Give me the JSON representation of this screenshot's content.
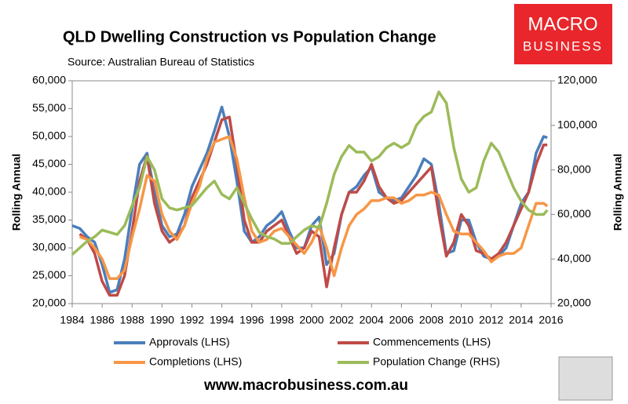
{
  "chart_data": {
    "type": "line",
    "title": "QLD Dwelling Construction vs Population Change",
    "subtitle": "Source: Australian Bureau of Statistics",
    "logo": [
      "MACRO",
      "BUSINESS"
    ],
    "footer": "www.macrobusiness.com.au",
    "ylabel": "Rolling Annual",
    "y2label": "Rolling Annual",
    "x": [
      1984,
      1984.5,
      1985,
      1985.5,
      1986,
      1986.5,
      1987,
      1987.5,
      1988,
      1988.5,
      1989,
      1989.5,
      1990,
      1990.5,
      1991,
      1991.5,
      1992,
      1992.5,
      1993,
      1993.5,
      1994,
      1994.5,
      1995,
      1995.5,
      1996,
      1996.5,
      1997,
      1997.5,
      1998,
      1998.5,
      1999,
      1999.5,
      2000,
      2000.5,
      2001,
      2001.5,
      2002,
      2002.5,
      2003,
      2003.5,
      2004,
      2004.5,
      2005,
      2005.5,
      2006,
      2006.5,
      2007,
      2007.5,
      2008,
      2008.5,
      2009,
      2009.5,
      2010,
      2010.5,
      2011,
      2011.5,
      2012,
      2012.5,
      2013,
      2013.5,
      2014,
      2014.5,
      2015,
      2015.5,
      2015.75
    ],
    "series": [
      {
        "name": "Approvals (LHS)",
        "color": "#4a7ebb",
        "values": [
          34000,
          33500,
          32000,
          31000,
          27000,
          22000,
          22500,
          28000,
          37000,
          45000,
          47000,
          40000,
          34000,
          32000,
          32500,
          36000,
          41000,
          44000,
          47000,
          51000,
          55300,
          50000,
          42000,
          33000,
          31000,
          32000,
          34000,
          35000,
          36500,
          33000,
          30000,
          30000,
          34000,
          35500,
          27000,
          29000,
          36000,
          40000,
          41000,
          43000,
          44500,
          40000,
          39000,
          38500,
          39000,
          41000,
          43000,
          46000,
          45000,
          38000,
          29000,
          29500,
          35000,
          35000,
          31000,
          28500,
          28000,
          28500,
          30000,
          34000,
          38000,
          40000,
          47000,
          50000,
          49800
        ]
      },
      {
        "name": "Commencements (LHS)",
        "color": "#be4b48",
        "values": [
          null,
          32500,
          31500,
          29000,
          24000,
          21500,
          21500,
          25000,
          33000,
          42000,
          46500,
          38000,
          33000,
          31000,
          32000,
          34000,
          39000,
          42000,
          45000,
          49000,
          53000,
          53500,
          45000,
          35000,
          31000,
          31000,
          33000,
          34000,
          35000,
          32000,
          29000,
          30000,
          33000,
          32000,
          23000,
          30000,
          36000,
          40000,
          40000,
          42000,
          45000,
          41000,
          39000,
          38000,
          38500,
          40000,
          41500,
          43000,
          44500,
          36000,
          28500,
          31000,
          36000,
          34000,
          29500,
          29000,
          28000,
          29000,
          31000,
          34000,
          37000,
          40000,
          45000,
          48500,
          48500
        ]
      },
      {
        "name": "Completions (LHS)",
        "color": "#f79646",
        "values": [
          null,
          32000,
          31500,
          30000,
          28000,
          24500,
          24500,
          26000,
          32000,
          37000,
          43000,
          42000,
          36000,
          33000,
          31500,
          34000,
          38000,
          41000,
          46000,
          49000,
          49500,
          50000,
          46000,
          39000,
          33000,
          31000,
          31500,
          33000,
          33500,
          32000,
          30500,
          29000,
          31000,
          34000,
          30000,
          25000,
          30000,
          34000,
          36000,
          37000,
          38500,
          38500,
          39000,
          39000,
          38000,
          38500,
          39500,
          39500,
          40000,
          39500,
          36000,
          33000,
          32500,
          32500,
          31000,
          29500,
          27500,
          28500,
          29000,
          29000,
          30000,
          34000,
          38000,
          38000,
          37500
        ]
      },
      {
        "name": "Population Change (RHS)",
        "color": "#9bbb59",
        "axis": "y2",
        "values": [
          42000,
          45000,
          48000,
          50000,
          53000,
          52000,
          51000,
          55000,
          64000,
          72000,
          86000,
          80000,
          67000,
          63000,
          62000,
          63000,
          64000,
          68000,
          72000,
          75000,
          69000,
          67000,
          72000,
          65000,
          58000,
          52000,
          50000,
          49000,
          47000,
          47000,
          50000,
          53000,
          55000,
          54000,
          65000,
          78000,
          86000,
          91000,
          88000,
          88000,
          84000,
          86000,
          90000,
          92000,
          90000,
          92000,
          100000,
          104000,
          106000,
          115000,
          110000,
          90000,
          76000,
          70000,
          72000,
          84000,
          92000,
          88000,
          80000,
          72000,
          66000,
          62000,
          60000,
          60000,
          62000
        ]
      }
    ],
    "xlim": [
      1984,
      2016
    ],
    "xticks": [
      1984,
      1986,
      1988,
      1990,
      1992,
      1994,
      1996,
      1998,
      2000,
      2002,
      2004,
      2006,
      2008,
      2010,
      2012,
      2014,
      2016
    ],
    "ylim": [
      20000,
      60000
    ],
    "yticks": [
      {
        "value": 20000,
        "label": "20,000"
      },
      {
        "value": 25000,
        "label": "25,000"
      },
      {
        "value": 30000,
        "label": "30,000"
      },
      {
        "value": 35000,
        "label": "35,000"
      },
      {
        "value": 40000,
        "label": "40,000"
      },
      {
        "value": 45000,
        "label": "45,000"
      },
      {
        "value": 50000,
        "label": "50,000"
      },
      {
        "value": 55000,
        "label": "55,000"
      },
      {
        "value": 60000,
        "label": "60,000"
      }
    ],
    "y2lim": [
      20000,
      120000
    ],
    "y2ticks": [
      {
        "value": 20000,
        "label": "20,000"
      },
      {
        "value": 40000,
        "label": "40,000"
      },
      {
        "value": 60000,
        "label": "60,000"
      },
      {
        "value": 80000,
        "label": "80,000"
      },
      {
        "value": 100000,
        "label": "100,000"
      },
      {
        "value": 120000,
        "label": "120,000"
      }
    ],
    "grid": false
  }
}
